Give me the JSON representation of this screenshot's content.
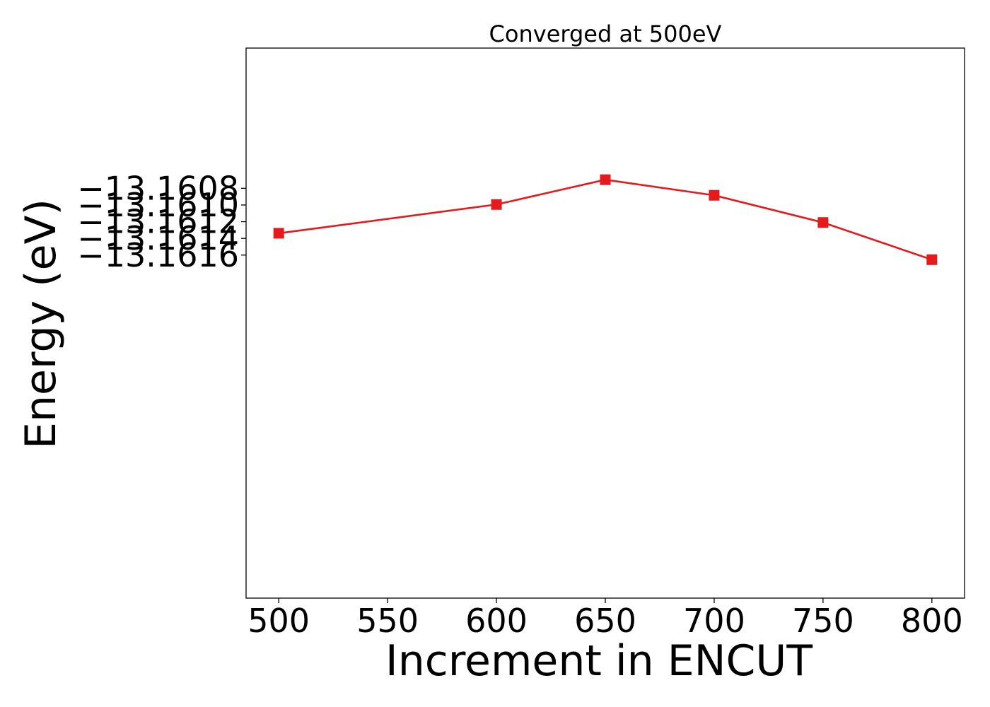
{
  "chart_data": {
    "type": "line",
    "title": "Converged at 500eV",
    "xlabel": "Increment in ENCUT",
    "ylabel": "Energy (eV)",
    "x": [
      500,
      600,
      650,
      700,
      750,
      800
    ],
    "series": [
      {
        "values": [
          -13.161339,
          -13.160994,
          -13.160697,
          -13.160884,
          -13.16121,
          -13.161655
        ],
        "color": "#e41a1c",
        "marker": "square"
      }
    ],
    "xlim": [
      485,
      815
    ],
    "ylim": [
      -13.16571,
      -13.15912
    ],
    "xticks": [
      500,
      550,
      600,
      650,
      700,
      750,
      800
    ],
    "xtick_labels": [
      "500",
      "550",
      "600",
      "650",
      "700",
      "750",
      "800"
    ],
    "yticks": [
      -13.1608,
      -13.161,
      -13.1612,
      -13.1614,
      -13.1616
    ],
    "ytick_labels": [
      "−13.1608",
      "−13.1610",
      "−13.1612",
      "−13.1614",
      "−13.1616"
    ],
    "grid": false,
    "legend": "none"
  }
}
